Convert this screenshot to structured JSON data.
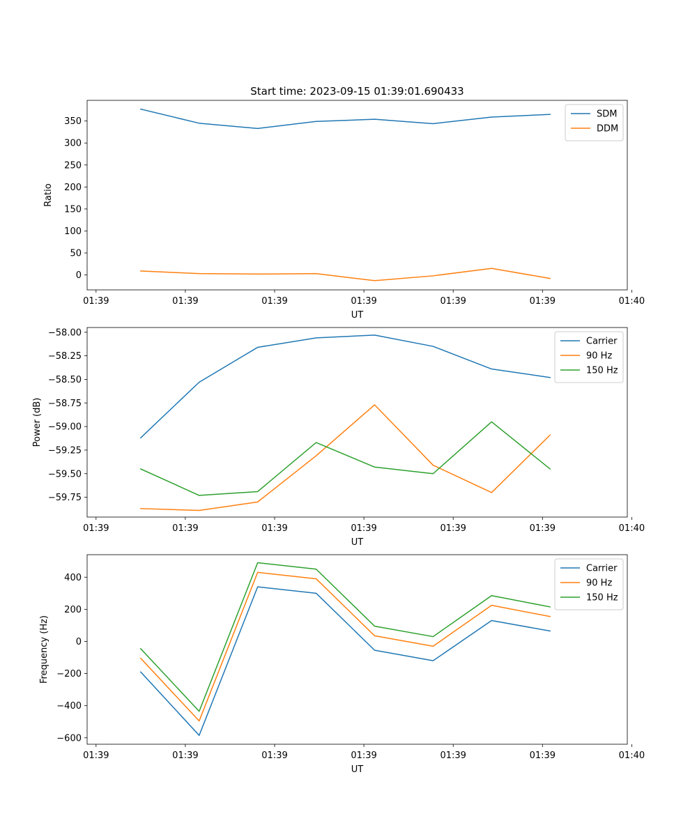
{
  "figure_title": "Start time: 2023-09-15 01:39:01.690433",
  "colors": {
    "blue": "#1f77b4",
    "orange": "#ff7f0e",
    "green": "#2ca02c"
  },
  "chart_data": [
    {
      "type": "line",
      "xlabel": "UT",
      "ylabel": "Ratio",
      "xticks": [
        "01:39",
        "01:39",
        "01:39",
        "01:39",
        "01:39",
        "01:39",
        "01:40"
      ],
      "x": [
        0.5,
        1.155,
        1.81,
        2.465,
        3.12,
        3.775,
        4.43,
        5.085
      ],
      "xlim": [
        -0.1,
        5.95
      ],
      "xtick_positions": [
        0,
        1,
        2,
        3,
        4,
        5,
        6
      ],
      "ylim": [
        -34,
        397
      ],
      "yticks": [
        0,
        50,
        100,
        150,
        200,
        250,
        300,
        350
      ],
      "ytick_labels": [
        "0",
        "50",
        "100",
        "150",
        "200",
        "250",
        "300",
        "350"
      ],
      "legend_position": "top-right",
      "series": [
        {
          "name": "SDM",
          "color": "#1f77b4",
          "values": [
            377,
            345,
            333,
            349,
            354,
            344,
            359,
            365
          ]
        },
        {
          "name": "DDM",
          "color": "#ff7f0e",
          "values": [
            9,
            3,
            2,
            3,
            -13,
            -2,
            15,
            -8
          ]
        }
      ]
    },
    {
      "type": "line",
      "xlabel": "UT",
      "ylabel": "Power (dB)",
      "xticks": [
        "01:39",
        "01:39",
        "01:39",
        "01:39",
        "01:39",
        "01:39",
        "01:40"
      ],
      "x": [
        0.5,
        1.155,
        1.81,
        2.465,
        3.12,
        3.775,
        4.43,
        5.085
      ],
      "xlim": [
        -0.1,
        5.95
      ],
      "xtick_positions": [
        0,
        1,
        2,
        3,
        4,
        5,
        6
      ],
      "ylim": [
        -59.96,
        -57.95
      ],
      "yticks": [
        -59.75,
        -59.5,
        -59.25,
        -59.0,
        -58.75,
        -58.5,
        -58.25,
        -58.0
      ],
      "ytick_labels": [
        "−59.75",
        "−59.50",
        "−59.25",
        "−59.00",
        "−58.75",
        "−58.50",
        "−58.25",
        "−58.00"
      ],
      "legend_position": "top-right",
      "series": [
        {
          "name": "Carrier",
          "color": "#1f77b4",
          "values": [
            -59.12,
            -58.53,
            -58.16,
            -58.06,
            -58.03,
            -58.15,
            -58.39,
            -58.48
          ]
        },
        {
          "name": "90 Hz",
          "color": "#ff7f0e",
          "values": [
            -59.87,
            -59.89,
            -59.8,
            -59.31,
            -58.77,
            -59.41,
            -59.7,
            -59.09
          ]
        },
        {
          "name": "150 Hz",
          "color": "#2ca02c",
          "values": [
            -59.45,
            -59.73,
            -59.69,
            -59.17,
            -59.43,
            -59.5,
            -58.95,
            -59.45
          ]
        }
      ]
    },
    {
      "type": "line",
      "xlabel": "UT",
      "ylabel": "Frequency (Hz)",
      "xticks": [
        "01:39",
        "01:39",
        "01:39",
        "01:39",
        "01:39",
        "01:39",
        "01:40"
      ],
      "x": [
        0.5,
        1.155,
        1.81,
        2.465,
        3.12,
        3.775,
        4.43,
        5.085
      ],
      "xlim": [
        -0.1,
        5.95
      ],
      "xtick_positions": [
        0,
        1,
        2,
        3,
        4,
        5,
        6
      ],
      "ylim": [
        -640,
        540
      ],
      "yticks": [
        -600,
        -400,
        -200,
        0,
        200,
        400
      ],
      "ytick_labels": [
        "−600",
        "−400",
        "−200",
        "0",
        "200",
        "400"
      ],
      "legend_position": "top-right",
      "series": [
        {
          "name": "Carrier",
          "color": "#1f77b4",
          "values": [
            -190,
            -585,
            340,
            300,
            -55,
            -120,
            130,
            65
          ]
        },
        {
          "name": "90 Hz",
          "color": "#ff7f0e",
          "values": [
            -105,
            -495,
            430,
            390,
            35,
            -30,
            225,
            155
          ]
        },
        {
          "name": "150 Hz",
          "color": "#2ca02c",
          "values": [
            -45,
            -435,
            490,
            450,
            95,
            30,
            285,
            215
          ]
        }
      ]
    }
  ]
}
